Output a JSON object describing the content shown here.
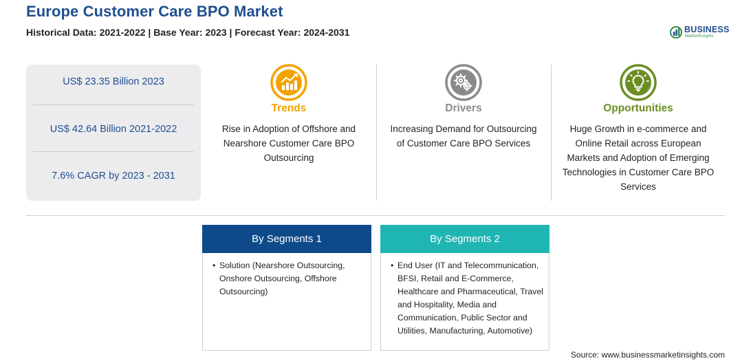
{
  "header": {
    "title": "Europe Customer Care BPO Market",
    "subtitle": "Historical Data: 2021-2022 | Base Year: 2023 | Forecast Year: 2024-2031"
  },
  "logo": {
    "brand": "BUSINESS",
    "sub": "MarketInsights"
  },
  "stats": [
    "US$ 23.35 Billion 2023",
    "US$ 42.64 Billion 2021-2022",
    "7.6% CAGR by 2023 - 2031"
  ],
  "columns": [
    {
      "title": "Trends",
      "color": "#f2a300",
      "icon": "trend-chart-icon",
      "text": "Rise in Adoption of Offshore and Nearshore Customer Care BPO Outsourcing"
    },
    {
      "title": "Drivers",
      "color": "#8a8a8a",
      "icon": "gears-icon",
      "text": "Increasing Demand for Outsourcing of Customer Care BPO Services"
    },
    {
      "title": "Opportunities",
      "color": "#6b8e23",
      "icon": "lightbulb-icon",
      "text": "Huge Growth in e-commerce and Online Retail across European Markets and Adoption of Emerging Technologies in Customer Care BPO Services"
    }
  ],
  "segments": [
    {
      "title": "By Segments 1",
      "color": "#0e4a8a",
      "items": [
        "Solution (Nearshore Outsourcing, Onshore Outsourcing, Offshore Outsourcing)"
      ]
    },
    {
      "title": "By Segments 2",
      "color": "#1fb5b3",
      "items": [
        "End User (IT and Telecommunication, BFSI, Retail and E-Commerce, Healthcare and Pharmaceutical, Travel and Hospitality, Media and Communication, Public Sector and Utilities, Manufacturing, Automotive)"
      ]
    }
  ],
  "source": "Source: www.businessmarketinsights.com"
}
